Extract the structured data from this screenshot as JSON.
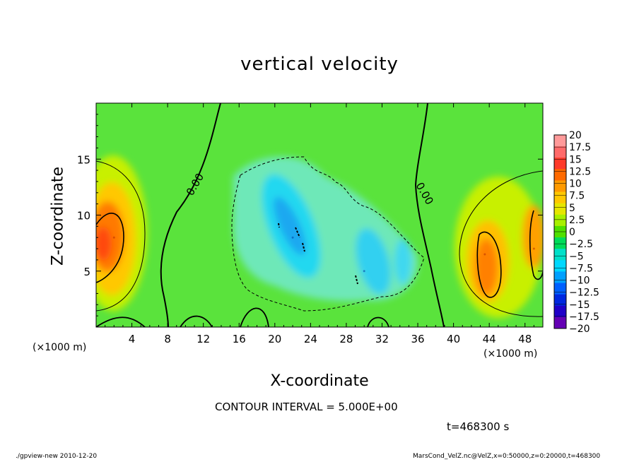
{
  "chart_data": {
    "type": "heatmap",
    "title": "vertical velocity",
    "xlabel": "X-coordinate",
    "ylabel": "Z-coordinate",
    "x_unit_label": "(×1000 m)",
    "x_unit_label_right": "(×1000 m)",
    "xlim": [
      0,
      50
    ],
    "ylim": [
      0,
      20
    ],
    "x_ticks": [
      "4",
      "8",
      "12",
      "16",
      "20",
      "24",
      "28",
      "32",
      "36",
      "40",
      "44",
      "48"
    ],
    "y_ticks": [
      "5",
      "10",
      "15"
    ],
    "contour_label": "0.00",
    "colorbar": {
      "labels": [
        "20",
        "17.5",
        "15",
        "12.5",
        "10",
        "7.5",
        "5",
        "2.5",
        "0",
        "−2.5",
        "−5",
        "−7.5",
        "−10",
        "−12.5",
        "−15",
        "−17.5",
        "−20"
      ],
      "colors": [
        "#ff9a9a",
        "#ff6a6a",
        "#ff3a2a",
        "#ff6a00",
        "#ff9a00",
        "#ffc800",
        "#e6e600",
        "#a8f000",
        "#4fe000",
        "#00dc5a",
        "#00e0c8",
        "#00d8ff",
        "#00a0ff",
        "#0060ff",
        "#0028e0",
        "#2000c8",
        "#6400b4"
      ]
    },
    "features": [
      {
        "x": 2,
        "z": 8,
        "w": 12,
        "sign": "positive"
      },
      {
        "x": 22,
        "z": 8,
        "w": -6,
        "sign": "negative"
      },
      {
        "x": 30,
        "z": 5,
        "w": -4,
        "sign": "negative"
      },
      {
        "x": 43.5,
        "z": 6.5,
        "w": 11,
        "sign": "positive"
      },
      {
        "x": 49,
        "z": 7,
        "w": 9,
        "sign": "positive"
      }
    ]
  },
  "annotations": {
    "contour_interval": "CONTOUR INTERVAL = 5.000E+00",
    "time": "t=468300 s",
    "footer_left": "./gpview-new   2010-12-20",
    "footer_right": "MarsCond_VelZ.nc@VelZ,x=0:50000,z=0:20000,t=468300"
  }
}
